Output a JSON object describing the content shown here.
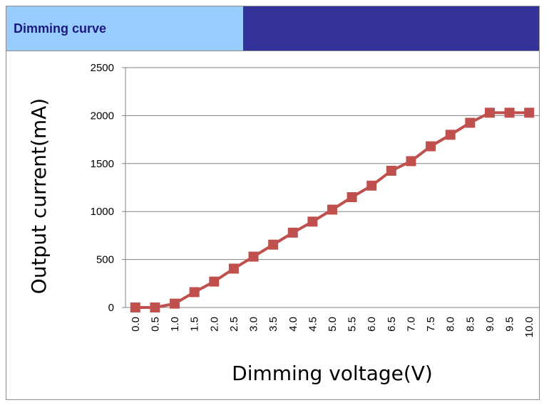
{
  "header": {
    "title": "Dimming curve",
    "colors": {
      "left_bg": "#99ccff",
      "right_bg": "#333399",
      "title_color": "#1a1a80"
    }
  },
  "chart_data": {
    "type": "line",
    "xlabel": "Dimming voltage(V)",
    "ylabel": "Output current(mA)",
    "ylim": [
      0,
      2500
    ],
    "yticks": [
      0,
      500,
      1000,
      1500,
      2000,
      2500
    ],
    "categories": [
      "0.0",
      "0.5",
      "1.0",
      "1.5",
      "2.0",
      "2.5",
      "3.0",
      "3.5",
      "4.0",
      "4.5",
      "5.0",
      "5.5",
      "6.0",
      "6.5",
      "7.0",
      "7.5",
      "8.0",
      "8.5",
      "9.0",
      "9.5",
      "10.0"
    ],
    "series": [
      {
        "values": [
          0,
          0,
          40,
          160,
          270,
          405,
          530,
          655,
          780,
          895,
          1020,
          1150,
          1270,
          1425,
          1525,
          1680,
          1800,
          1925,
          2030,
          2030,
          2030
        ],
        "color": "#c0504d",
        "marker": "square"
      }
    ],
    "grid": true,
    "legend": "none"
  }
}
